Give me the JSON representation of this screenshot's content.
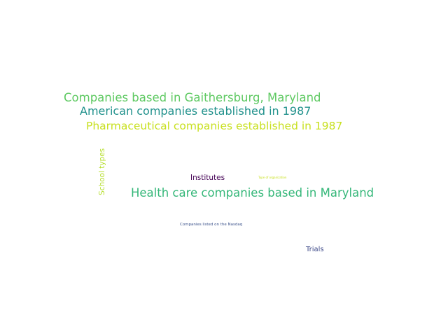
{
  "words": [
    {
      "text": "Companies based in Gaithersburg, Maryland",
      "color": "#5ec962"
    },
    {
      "text": "American companies established in 1987",
      "color": "#21918c"
    },
    {
      "text": "Pharmaceutical companies established in 1987",
      "color": "#c8e020"
    },
    {
      "text": "School types",
      "color": "#b5de2b"
    },
    {
      "text": "Institutes",
      "color": "#440154"
    },
    {
      "text": "Type of organization",
      "color": "#c8e020"
    },
    {
      "text": "Health care companies based in Maryland",
      "color": "#35b779"
    },
    {
      "text": "Companies listed on the Nasdaq",
      "color": "#3b528b"
    },
    {
      "text": "Trials",
      "color": "#3e4a89"
    }
  ]
}
